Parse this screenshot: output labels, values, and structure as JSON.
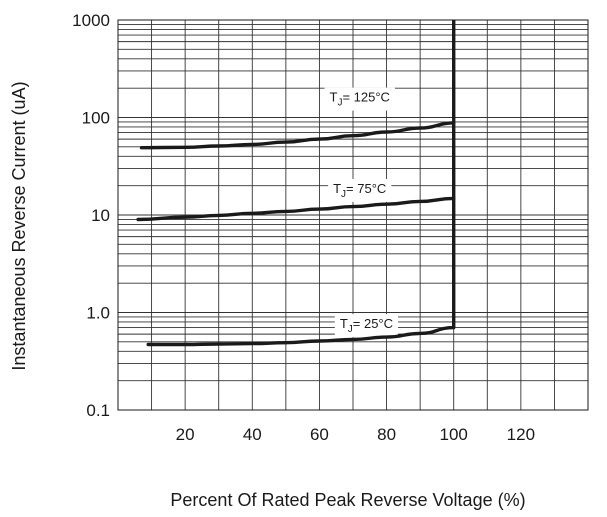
{
  "chart_data": {
    "type": "line",
    "xlabel": "Percent  Of  Rated  Peak Reverse  Voltage (%)",
    "ylabel": "Instantaneous  Reverse Current (uA)",
    "xlim": [
      0,
      140
    ],
    "ylim": [
      0.1,
      1000
    ],
    "y_scale": "log",
    "x_ticks": [
      {
        "value": 20,
        "label": "20"
      },
      {
        "value": 40,
        "label": "40"
      },
      {
        "value": 60,
        "label": "60"
      },
      {
        "value": 80,
        "label": "80"
      },
      {
        "value": 100,
        "label": "100"
      },
      {
        "value": 120,
        "label": "120"
      }
    ],
    "y_ticks": [
      {
        "value": 0.1,
        "label": "0.1"
      },
      {
        "value": 1,
        "label": "1.0"
      },
      {
        "value": 10,
        "label": "10"
      },
      {
        "value": 100,
        "label": "100"
      },
      {
        "value": 1000,
        "label": "1000"
      }
    ],
    "grid": true,
    "breakdown_line": {
      "x": 100,
      "y_from": 0.7,
      "y_to": 1000
    },
    "series": [
      {
        "label_main": "T",
        "label_sub": "J",
        "label_rest": "= 125°C",
        "label_at": {
          "x": 72,
          "y": 160
        },
        "x": [
          7,
          20,
          30,
          40,
          50,
          60,
          70,
          80,
          90,
          100
        ],
        "y": [
          49,
          49.5,
          51,
          53,
          56,
          60,
          65,
          71,
          78,
          88
        ]
      },
      {
        "label_main": "T",
        "label_sub": "J",
        "label_rest": "= 75°C",
        "label_at": {
          "x": 72,
          "y": 18.5
        },
        "x": [
          6,
          20,
          30,
          40,
          50,
          60,
          70,
          80,
          90,
          100
        ],
        "y": [
          9.0,
          9.5,
          9.9,
          10.4,
          10.9,
          11.5,
          12.2,
          12.9,
          13.8,
          14.8
        ]
      },
      {
        "label_main": "T",
        "label_sub": "J",
        "label_rest": "= 25°C",
        "label_at": {
          "x": 74,
          "y": 0.76
        },
        "x": [
          9,
          20,
          30,
          40,
          50,
          60,
          70,
          80,
          90,
          100
        ],
        "y": [
          0.47,
          0.47,
          0.475,
          0.48,
          0.49,
          0.51,
          0.53,
          0.56,
          0.61,
          0.7
        ]
      }
    ]
  }
}
